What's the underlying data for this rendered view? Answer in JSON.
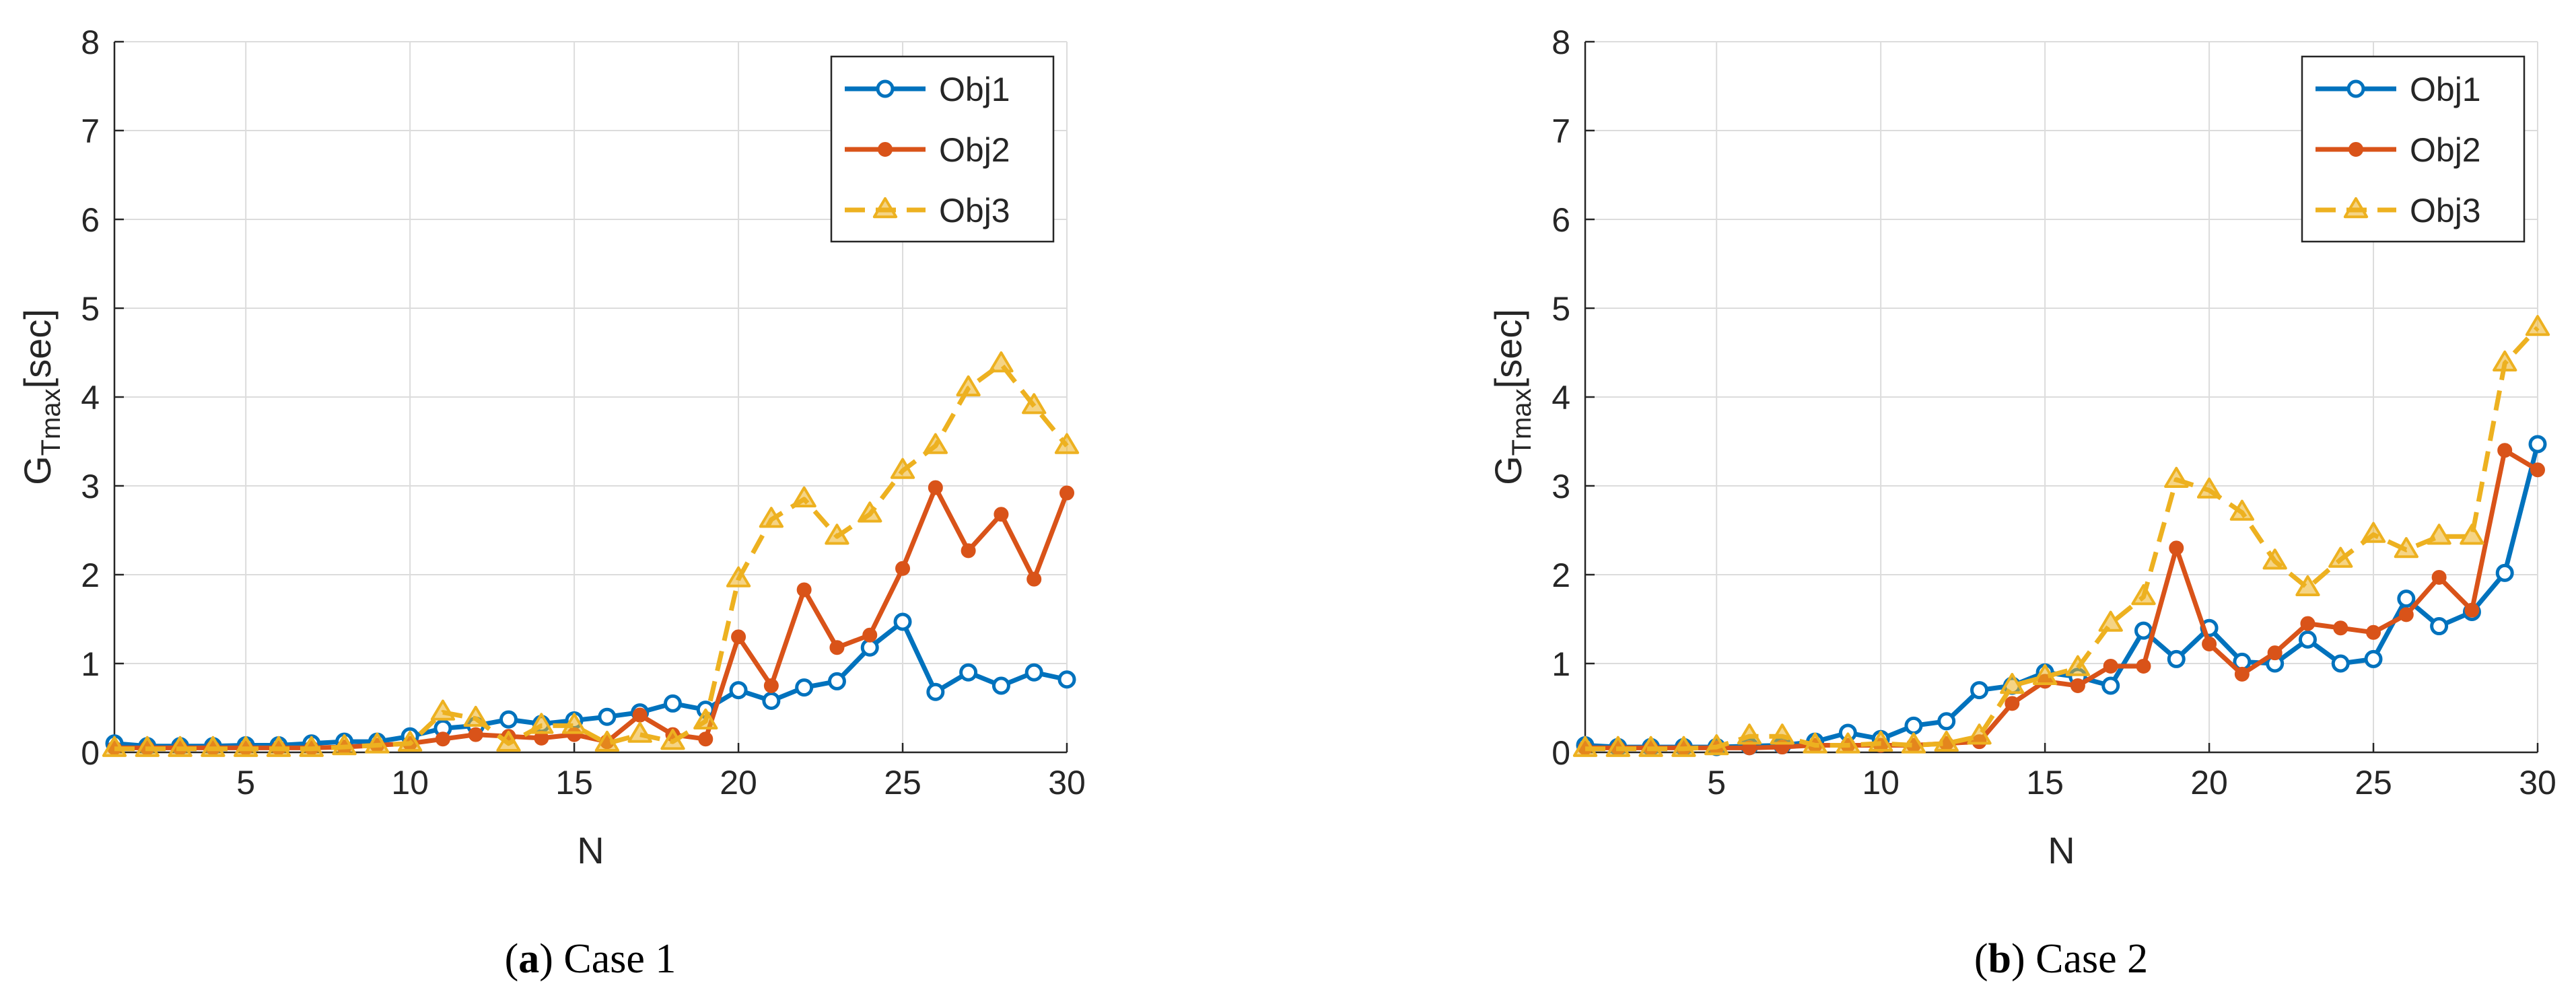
{
  "chart_data": [
    {
      "type": "line",
      "panel": "a",
      "caption_letter": "a",
      "caption_text": " Case 1",
      "xlabel": "N",
      "ylabel": "G",
      "ylabel_sub": "Tmax",
      "ylabel_unit": "[sec]",
      "xlim": [
        1,
        30
      ],
      "ylim": [
        0,
        8
      ],
      "xticks": [
        5,
        10,
        15,
        20,
        25,
        30
      ],
      "yticks": [
        0,
        1,
        2,
        3,
        4,
        5,
        6,
        7,
        8
      ],
      "grid": true,
      "legend_position": "top-right",
      "x": [
        1,
        2,
        3,
        4,
        5,
        6,
        7,
        8,
        9,
        10,
        11,
        12,
        13,
        14,
        15,
        16,
        17,
        18,
        19,
        20,
        21,
        22,
        23,
        24,
        25,
        26,
        27,
        28,
        29,
        30
      ],
      "series": [
        {
          "name": "Obj1",
          "color": "#0072BD",
          "marker": "circle",
          "dash": "solid",
          "values": [
            0.1,
            0.07,
            0.07,
            0.07,
            0.08,
            0.08,
            0.1,
            0.12,
            0.12,
            0.18,
            0.27,
            0.3,
            0.37,
            0.32,
            0.36,
            0.4,
            0.45,
            0.55,
            0.48,
            0.7,
            0.58,
            0.73,
            0.8,
            1.18,
            1.47,
            0.68,
            0.9,
            0.75,
            0.9,
            0.82
          ]
        },
        {
          "name": "Obj2",
          "color": "#D95319",
          "marker": "dot",
          "dash": "solid",
          "values": [
            0.05,
            0.05,
            0.05,
            0.05,
            0.05,
            0.05,
            0.05,
            0.06,
            0.08,
            0.1,
            0.15,
            0.2,
            0.18,
            0.16,
            0.2,
            0.12,
            0.42,
            0.2,
            0.15,
            1.3,
            0.75,
            1.83,
            1.18,
            1.32,
            2.07,
            2.98,
            2.27,
            2.68,
            1.95,
            2.92
          ]
        },
        {
          "name": "Obj3",
          "color": "#EDB120",
          "marker": "triangle",
          "dash": "dashed",
          "values": [
            0.04,
            0.04,
            0.04,
            0.04,
            0.04,
            0.04,
            0.04,
            0.06,
            0.08,
            0.1,
            0.45,
            0.38,
            0.1,
            0.3,
            0.3,
            0.1,
            0.2,
            0.12,
            0.35,
            1.95,
            2.62,
            2.85,
            2.43,
            2.68,
            3.17,
            3.45,
            4.1,
            4.37,
            3.9,
            3.45
          ]
        }
      ]
    },
    {
      "type": "line",
      "panel": "b",
      "caption_letter": "b",
      "caption_text": " Case 2",
      "xlabel": "N",
      "ylabel": "G",
      "ylabel_sub": "Tmax",
      "ylabel_unit": "[sec]",
      "xlim": [
        1,
        30
      ],
      "ylim": [
        0,
        8
      ],
      "xticks": [
        5,
        10,
        15,
        20,
        25,
        30
      ],
      "yticks": [
        0,
        1,
        2,
        3,
        4,
        5,
        6,
        7,
        8
      ],
      "grid": true,
      "legend_position": "top-right",
      "x": [
        1,
        2,
        3,
        4,
        5,
        6,
        7,
        8,
        9,
        10,
        11,
        12,
        13,
        14,
        15,
        16,
        17,
        18,
        19,
        20,
        21,
        22,
        23,
        24,
        25,
        26,
        27,
        28,
        29,
        30
      ],
      "series": [
        {
          "name": "Obj1",
          "color": "#0072BD",
          "marker": "circle",
          "dash": "solid",
          "values": [
            0.08,
            0.06,
            0.06,
            0.06,
            0.06,
            0.07,
            0.08,
            0.12,
            0.22,
            0.15,
            0.3,
            0.35,
            0.7,
            0.75,
            0.9,
            0.85,
            0.75,
            1.37,
            1.05,
            1.4,
            1.02,
            1.0,
            1.27,
            1.0,
            1.05,
            1.73,
            1.42,
            1.58,
            2.02,
            3.47
          ]
        },
        {
          "name": "Obj2",
          "color": "#D95319",
          "marker": "dot",
          "dash": "solid",
          "values": [
            0.05,
            0.05,
            0.05,
            0.05,
            0.05,
            0.05,
            0.06,
            0.08,
            0.08,
            0.08,
            0.08,
            0.1,
            0.12,
            0.55,
            0.8,
            0.75,
            0.97,
            0.97,
            2.3,
            1.22,
            0.88,
            1.12,
            1.45,
            1.4,
            1.35,
            1.55,
            1.97,
            1.6,
            3.4,
            3.18
          ]
        },
        {
          "name": "Obj3",
          "color": "#EDB120",
          "marker": "triangle",
          "dash": "dashed",
          "values": [
            0.04,
            0.04,
            0.04,
            0.04,
            0.06,
            0.18,
            0.18,
            0.08,
            0.08,
            0.1,
            0.08,
            0.1,
            0.18,
            0.75,
            0.85,
            0.95,
            1.45,
            1.75,
            3.07,
            2.95,
            2.7,
            2.15,
            1.85,
            2.17,
            2.45,
            2.28,
            2.43,
            2.43,
            4.38,
            4.78
          ]
        }
      ]
    }
  ]
}
